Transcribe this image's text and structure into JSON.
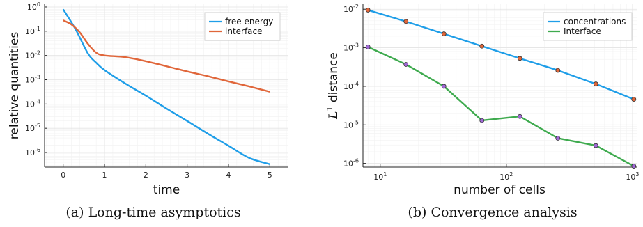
{
  "chart_data": [
    {
      "type": "line",
      "caption": "(a) Long-time asymptotics",
      "xlabel": "time",
      "ylabel": "relative quantities",
      "x_scale": "linear",
      "y_scale": "log",
      "xlim": [
        -0.45,
        5.45
      ],
      "ylim": [
        2.5e-07,
        1.3
      ],
      "x_ticks": [
        0,
        1,
        2,
        3,
        4,
        5
      ],
      "x_tick_labels": [
        "0",
        "1",
        "2",
        "3",
        "4",
        "5"
      ],
      "y_ticks": [
        1e-06,
        1e-05,
        0.0001,
        0.001,
        0.01,
        0.1,
        1
      ],
      "y_tick_labels": [
        {
          "base": "10",
          "exp": "-6"
        },
        {
          "base": "10",
          "exp": "-5"
        },
        {
          "base": "10",
          "exp": "-4"
        },
        {
          "base": "10",
          "exp": "-3"
        },
        {
          "base": "10",
          "exp": "-2"
        },
        {
          "base": "10",
          "exp": "-1"
        },
        {
          "base": "10",
          "exp": "0"
        }
      ],
      "grid": true,
      "legend_position": "top-right",
      "series": [
        {
          "name": "free energy",
          "color": "#1f9ee8",
          "x": [
            0,
            0.3,
            0.6,
            0.8,
            1.0,
            1.5,
            2.0,
            2.5,
            3.0,
            3.5,
            4.0,
            4.5,
            5.0
          ],
          "y": [
            0.8,
            0.12,
            0.012,
            0.005,
            0.0025,
            0.0007,
            0.00022,
            6.5e-05,
            2e-05,
            6e-06,
            1.9e-06,
            6e-07,
            3.3e-07
          ]
        },
        {
          "name": "interface",
          "color": "#e0663a",
          "x": [
            0,
            0.2,
            0.4,
            0.6,
            0.8,
            1.0,
            1.5,
            2.0,
            2.5,
            3.0,
            3.5,
            4.0,
            4.5,
            5.0
          ],
          "y": [
            0.28,
            0.19,
            0.09,
            0.03,
            0.013,
            0.01,
            0.0085,
            0.0058,
            0.0036,
            0.0022,
            0.0014,
            0.00085,
            0.00053,
            0.00032
          ]
        }
      ]
    },
    {
      "type": "line",
      "caption": "(b) Convergence analysis",
      "xlabel": "number of cells",
      "ylabel": {
        "base": "L",
        "sup": "1",
        "rest": " distance"
      },
      "x_scale": "log",
      "y_scale": "log",
      "xlim": [
        7.3,
        1080
      ],
      "ylim": [
        8e-07,
        0.0135
      ],
      "x_ticks": [
        10,
        100,
        1000
      ],
      "x_tick_labels": [
        {
          "base": "10",
          "exp": "1"
        },
        {
          "base": "10",
          "exp": "2"
        },
        {
          "base": "10",
          "exp": "3"
        }
      ],
      "y_ticks": [
        1e-06,
        1e-05,
        0.0001,
        0.001,
        0.01
      ],
      "y_tick_labels": [
        {
          "base": "10",
          "exp": "-6"
        },
        {
          "base": "10",
          "exp": "-5"
        },
        {
          "base": "10",
          "exp": "-4"
        },
        {
          "base": "10",
          "exp": "-3"
        },
        {
          "base": "10",
          "exp": "-2"
        }
      ],
      "grid": true,
      "legend_position": "top-right",
      "series": [
        {
          "name": "concentrations",
          "color": "#1f9ee8",
          "marker_color": "#e0663a",
          "x": [
            8,
            16,
            32,
            64,
            128,
            256,
            512,
            1024
          ],
          "y": [
            0.0095,
            0.0048,
            0.0023,
            0.0011,
            0.00053,
            0.00026,
            0.000115,
            4.6e-05
          ]
        },
        {
          "name": "Interface",
          "color": "#3eaa4e",
          "marker_color": "#a06ad6",
          "x": [
            8,
            16,
            32,
            64,
            128,
            256,
            512,
            1024
          ],
          "y": [
            0.00105,
            0.00037,
            0.0001,
            1.3e-05,
            1.65e-05,
            4.5e-06,
            2.9e-06,
            8.5e-07
          ]
        }
      ]
    }
  ]
}
